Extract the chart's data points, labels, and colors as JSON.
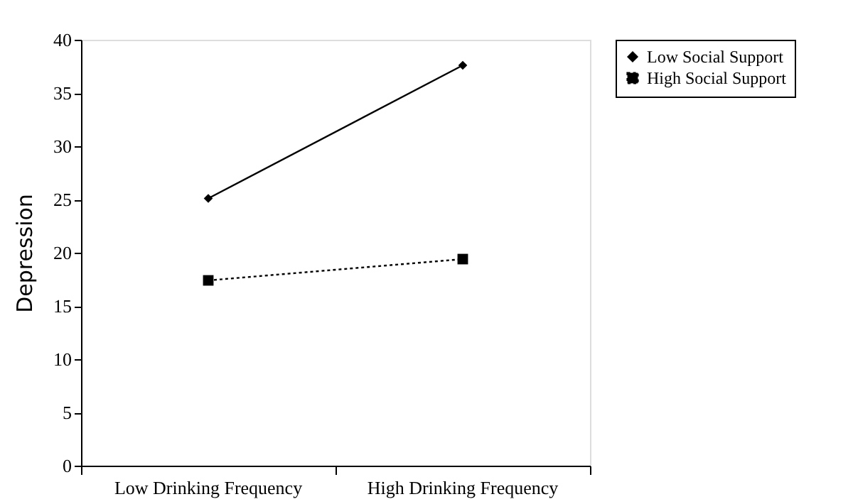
{
  "chart_data": {
    "type": "line",
    "ylabel": "Depression",
    "categories": [
      "Low Drinking Frequency",
      "High Drinking Frequency"
    ],
    "series": [
      {
        "name": "Low Social Support",
        "color": "#000000",
        "values": [
          25.1,
          37.6
        ],
        "marker": "diamond",
        "line_style": "solid"
      },
      {
        "name": "High Social Support",
        "color": "#000000",
        "values": [
          17.4,
          19.4
        ],
        "marker": "square",
        "line_style": "dotted"
      }
    ],
    "ylim": [
      0,
      40
    ],
    "yticks": [
      0,
      5,
      10,
      15,
      20,
      25,
      30,
      35,
      40
    ],
    "grid": false,
    "legend": "right"
  }
}
